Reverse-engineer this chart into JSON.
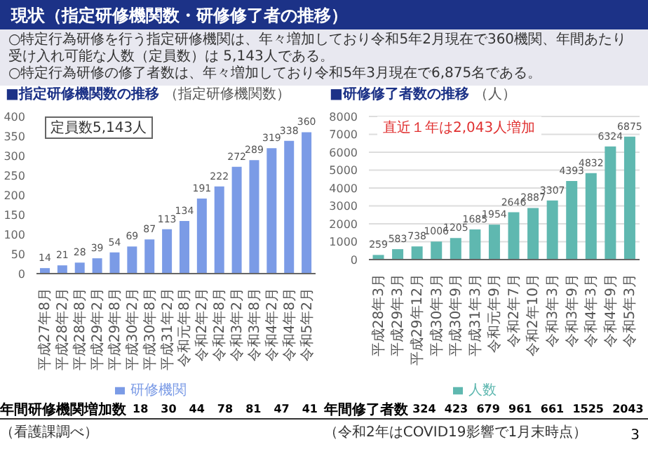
{
  "chart_data": [
    {
      "type": "other",
      "title": "現状（指定研修機関数・研修修了者の推移）",
      "annotations": [
        "○特定行為研修を行う指定研修機関は、年々増加しており令和5年2月現在で360機関、年間あたり受け入れ可能な人数（定員数）は 5,143人である。",
        "○特定行為研修の修了者数は、年々増加しており令和5年3月現在で6,875名である。",
        "3"
      ]
    },
    {
      "type": "bar",
      "title": "■指定研修機関数の推移",
      "ylabel": "（指定研修機関数）",
      "categories": [
        "平成27年8月",
        "平成28年2月",
        "平成28年8月",
        "平成29年2月",
        "平成29年8月",
        "平成30年2月",
        "平成30年8月",
        "平成31年2月",
        "令和元年8月",
        "令和2年2月",
        "令和2年8月",
        "令和3年2月",
        "令和3年8月",
        "令和4年2月",
        "令和4年8月",
        "令和5年2月"
      ],
      "series": [
        {
          "name": "研修機関",
          "color": "#7b9be6",
          "values": [
            14,
            21,
            28,
            39,
            54,
            69,
            87,
            113,
            134,
            191,
            222,
            272,
            289,
            319,
            338,
            360
          ]
        }
      ],
      "ylim": [
        0,
        400
      ],
      "yticks": [
        0,
        50,
        100,
        150,
        200,
        250,
        300,
        350,
        400
      ],
      "grid": false,
      "data_labels": true,
      "legend": "bottom",
      "annotations": [
        "定員数5,143人",
        "年間研修機関増加数",
        "18",
        "30",
        "44",
        "78",
        "81",
        "47",
        "41",
        "（看護課調べ）"
      ]
    },
    {
      "type": "bar",
      "title": "■研修修了者数の推移",
      "ylabel": "（人）",
      "categories": [
        "平成28年3月",
        "平成29年3月",
        "平成29年12月",
        "平成30年3月",
        "平成30年9月",
        "平成31年3月",
        "令和元年9月",
        "令和2年7月",
        "令和2年10月",
        "令和3年3月",
        "令和3年9月",
        "令和4年3月",
        "令和4年9月",
        "令和5年3月"
      ],
      "series": [
        {
          "name": "人数",
          "color": "#5fb8b0",
          "values": [
            259,
            583,
            738,
            1006,
            1205,
            1685,
            1954,
            2646,
            2887,
            3307,
            4393,
            4832,
            6324,
            6875
          ]
        }
      ],
      "ylim": [
        0,
        8000
      ],
      "yticks": [
        0,
        1000,
        2000,
        3000,
        4000,
        5000,
        6000,
        7000,
        8000
      ],
      "grid": "y",
      "data_labels": true,
      "legend": "bottom",
      "annotations": [
        "直近１年は2,043人増加",
        "年間修了者数",
        "324",
        "423",
        "679",
        "961",
        "661",
        "1525",
        "2043",
        "（令和2年はCOVID19影響で1月末時点）"
      ]
    }
  ]
}
